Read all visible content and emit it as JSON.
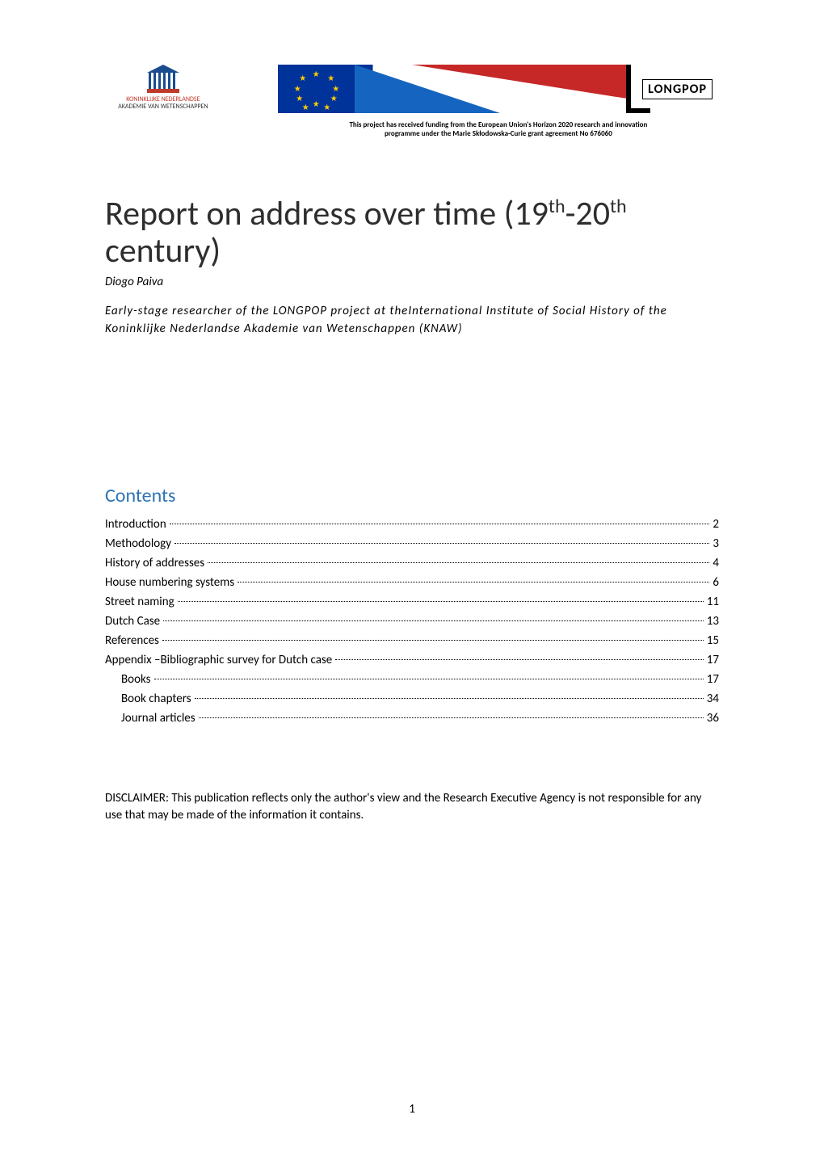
{
  "header": {
    "knaw": {
      "line1": "KONINKLIJKE NEDERLANDSE",
      "line2": "AKADEMIE VAN WETENSCHAPPEN"
    },
    "longpop": {
      "label": "LONGPOP",
      "funding_line1": "This project has received funding from the European Union's Horizon 2020 research and innovation",
      "funding_line2": "programme under the Marie Skłodowska-Curie grant agreement No 676060"
    }
  },
  "title": {
    "prefix": "Report on address over time (19",
    "sup1": "th",
    "mid": "-20",
    "sup2": "th",
    "line2": "century)"
  },
  "author": "Diogo Paiva",
  "affiliation": "Early-stage researcher of the LONGPOP project at theInternational Institute of Social History of the Koninklijke Nederlandse Akademie van Wetenschappen (KNAW)",
  "contents_heading": "Contents",
  "toc": [
    {
      "label": "Introduction",
      "page": "2",
      "sub": false
    },
    {
      "label": "Methodology",
      "page": "3",
      "sub": false
    },
    {
      "label": "History of addresses",
      "page": "4",
      "sub": false
    },
    {
      "label": "House numbering systems",
      "page": "6",
      "sub": false
    },
    {
      "label": "Street naming",
      "page": "11",
      "sub": false
    },
    {
      "label": "Dutch Case",
      "page": "13",
      "sub": false
    },
    {
      "label": "References",
      "page": "15",
      "sub": false
    },
    {
      "label": "Appendix –Bibliographic survey for Dutch case",
      "page": "17",
      "sub": false
    },
    {
      "label": "Books",
      "page": "17",
      "sub": true
    },
    {
      "label": "Book chapters",
      "page": "34",
      "sub": true
    },
    {
      "label": "Journal articles",
      "page": "36",
      "sub": true
    }
  ],
  "disclaimer": "DISCLAIMER: This publication reflects only the author's view and the Research Executive Agency is not responsible for any use that may be made of the information it contains.",
  "page_number": "1",
  "colors": {
    "heading_blue": "#2e74b5",
    "knaw_red": "#c0392b",
    "knaw_blue": "#1a4d8f",
    "eu_blue": "#003399",
    "eu_gold": "#ffcc00",
    "longpop_blue": "#1565c0",
    "longpop_red": "#c62828"
  }
}
